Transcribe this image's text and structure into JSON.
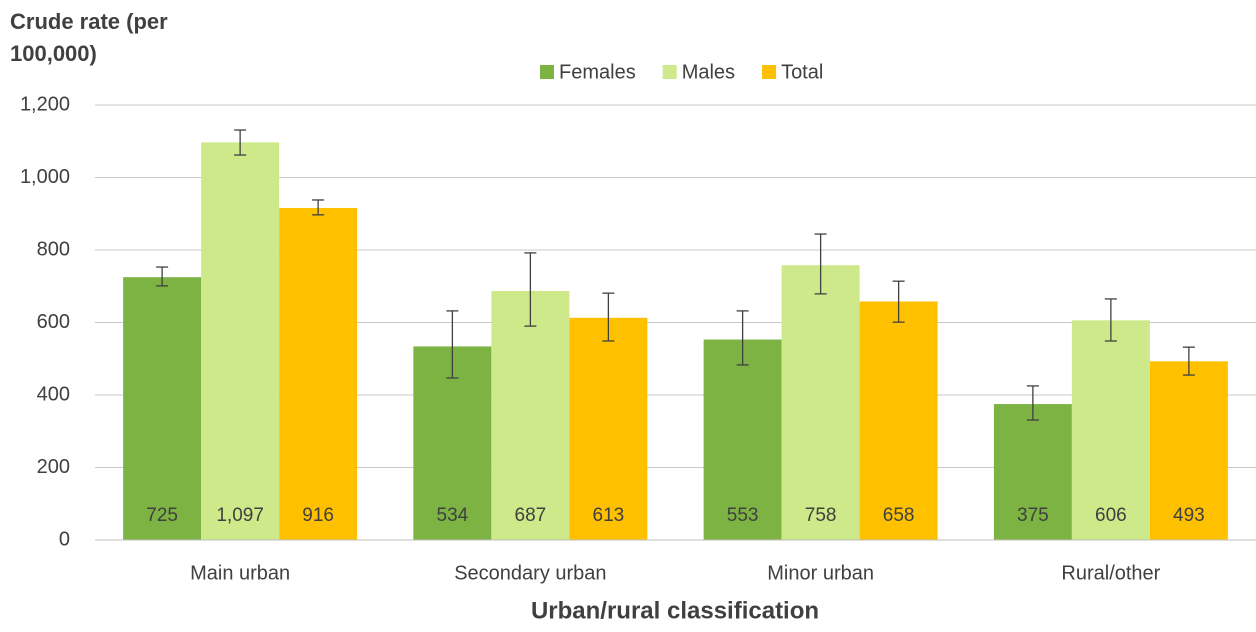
{
  "chart_data": {
    "type": "bar",
    "y_label": "Crude rate (per 100,000)",
    "x_label": "Urban/rural classification",
    "categories": [
      "Main urban",
      "Secondary urban",
      "Minor urban",
      "Rural/other"
    ],
    "series": [
      {
        "name": "Females",
        "color": "#7cb342",
        "values": [
          725,
          534,
          553,
          375
        ],
        "ci_lower": [
          701,
          447,
          483,
          331
        ],
        "ci_upper": [
          753,
          632,
          632,
          425
        ]
      },
      {
        "name": "Males",
        "color": "#cde98a",
        "values": [
          1097,
          687,
          758,
          606
        ],
        "value_labels": [
          "1,097",
          "687",
          "758",
          "606"
        ],
        "ci_lower": [
          1062,
          590,
          679,
          549
        ],
        "ci_upper": [
          1131,
          792,
          844,
          665
        ]
      },
      {
        "name": "Total",
        "color": "#ffc000",
        "values": [
          916,
          613,
          658,
          493
        ],
        "ci_lower": [
          897,
          549,
          601,
          455
        ],
        "ci_upper": [
          938,
          681,
          714,
          532
        ]
      }
    ],
    "ylim": [
      0,
      1200
    ],
    "yticks": [
      0,
      200,
      400,
      600,
      800,
      {
        "value": 1000,
        "label": "1,000"
      },
      {
        "value": 1200,
        "label": "1,200"
      }
    ],
    "grid": true,
    "legend": "top"
  }
}
